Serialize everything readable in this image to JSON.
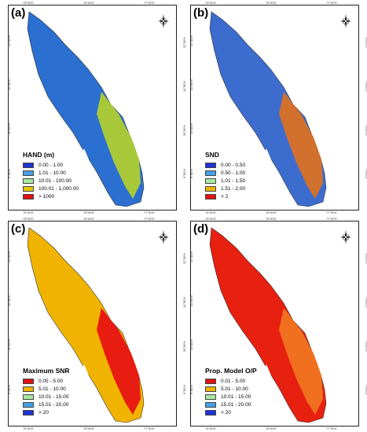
{
  "panels": [
    {
      "id": "a",
      "label": "(a)",
      "legend_title": "HAND (m)",
      "classes": [
        {
          "label": "0.00 - 1.00",
          "color": "#1f33d6"
        },
        {
          "label": "1.01 - 10.00",
          "color": "#44a0e8"
        },
        {
          "label": "10.01 - 100.00",
          "color": "#a8eaa0"
        },
        {
          "label": "100.01 - 1,000.00",
          "color": "#e8c800"
        },
        {
          "label": "> 1000",
          "color": "#e01010"
        }
      ],
      "fill_colors": [
        "#2b6fd0",
        "#a8c83a"
      ]
    },
    {
      "id": "b",
      "label": "(b)",
      "legend_title": "SND",
      "classes": [
        {
          "label": "0.00 - 0.50",
          "color": "#1f33d6"
        },
        {
          "label": "0.50 - 1.00",
          "color": "#44a0e8"
        },
        {
          "label": "1.01 - 1.50",
          "color": "#a8eaa0"
        },
        {
          "label": "1.51 - 2.00",
          "color": "#f0b400"
        },
        {
          "label": "> 2",
          "color": "#e01010"
        }
      ],
      "fill_colors": [
        "#3d6ccf",
        "#d2702e"
      ]
    },
    {
      "id": "c",
      "label": "(c)",
      "legend_title": "Maximum SNR",
      "classes": [
        {
          "label": "0.05 - 5.00",
          "color": "#e01010"
        },
        {
          "label": "5.01 - 10.00",
          "color": "#f0b400"
        },
        {
          "label": "10.01 - 15.00",
          "color": "#a8eaa0"
        },
        {
          "label": "15.01 - 20.00",
          "color": "#44a0e8"
        },
        {
          "label": "> 20",
          "color": "#1f33d6"
        }
      ],
      "fill_colors": [
        "#f0b400",
        "#e81c10"
      ]
    },
    {
      "id": "d",
      "label": "(d)",
      "legend_title": "Prop. Model O/P",
      "classes": [
        {
          "label": "0.01 - 5.00",
          "color": "#e01010"
        },
        {
          "label": "5.01 - 10.00",
          "color": "#f0b400"
        },
        {
          "label": "10.01 - 15.00",
          "color": "#a8eaa0"
        },
        {
          "label": "15.01 - 20.00",
          "color": "#44a0e8"
        },
        {
          "label": "> 20",
          "color": "#1f33d6"
        }
      ],
      "fill_colors": [
        "#e82010",
        "#f07020"
      ]
    }
  ],
  "ticks": {
    "top": [
      "75°00'E",
      "76°00'E",
      "77°00'E"
    ],
    "bottom": [
      "75°00'E",
      "76°00'E",
      "77°00'E"
    ],
    "left": [
      "12°00'N",
      "11°00'N",
      "10°00'N",
      "9°00'N"
    ],
    "right": [
      "12°00'N",
      "11°00'N",
      "10°00'N",
      "9°00'N"
    ]
  },
  "north_arrow_icon": "compass-rose-icon"
}
